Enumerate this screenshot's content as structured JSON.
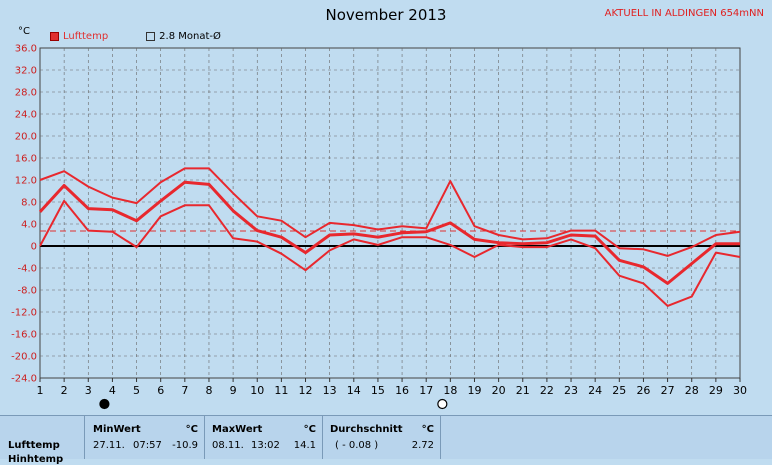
{
  "title": "November 2013",
  "station": "AKTUELL IN ALDINGEN 654mNN",
  "unit": "°C",
  "legend": [
    {
      "label": "Lufttemp",
      "color": "#e03030",
      "filled": true
    },
    {
      "label": "2.8 Monat-Ø",
      "color": "#333333",
      "filled": false
    }
  ],
  "chart_data": {
    "type": "line",
    "title": "November 2013",
    "ylabel": "°C",
    "ylim": [
      -24,
      36
    ],
    "yticks": [
      "36.0",
      "32.0",
      "28.0",
      "24.0",
      "20.0",
      "16.0",
      "12.0",
      "8.0",
      "4.0",
      "0",
      "-4.0",
      "-8.0",
      "-12.0",
      "-16.0",
      "-20.0",
      "-24.0"
    ],
    "x": [
      1,
      2,
      3,
      4,
      5,
      6,
      7,
      8,
      9,
      10,
      11,
      12,
      13,
      14,
      15,
      16,
      17,
      18,
      19,
      20,
      21,
      22,
      23,
      24,
      25,
      26,
      27,
      28,
      29,
      30
    ],
    "series": [
      {
        "name": "max",
        "values": [
          12.0,
          13.6,
          10.8,
          8.8,
          7.8,
          11.6,
          14.1,
          14.1,
          9.6,
          5.4,
          4.6,
          1.6,
          4.2,
          3.8,
          3.0,
          3.6,
          3.2,
          11.8,
          3.6,
          2.0,
          1.2,
          1.4,
          2.8,
          2.8,
          -0.4,
          -0.6,
          -1.8,
          -0.2,
          2.0,
          2.6
        ]
      },
      {
        "name": "mean",
        "values": [
          6.2,
          11.0,
          6.8,
          6.6,
          4.6,
          8.2,
          11.6,
          11.2,
          6.4,
          2.8,
          1.6,
          -1.2,
          2.0,
          2.2,
          1.6,
          2.4,
          2.6,
          4.2,
          1.2,
          0.6,
          0.4,
          0.6,
          2.0,
          1.8,
          -2.6,
          -3.8,
          -6.8,
          -3.2,
          0.4,
          0.4
        ]
      },
      {
        "name": "min",
        "values": [
          0.0,
          8.2,
          2.8,
          2.6,
          -0.2,
          5.4,
          7.4,
          7.4,
          1.4,
          0.8,
          -1.4,
          -4.4,
          -0.8,
          1.2,
          0.2,
          1.6,
          1.6,
          0.2,
          -2.0,
          0.2,
          -0.2,
          -0.2,
          1.2,
          -0.4,
          -5.4,
          -6.8,
          -10.9,
          -9.2,
          -1.2,
          -2.0
        ]
      }
    ],
    "reference_line": {
      "label": "2.8 Monat-Ø",
      "value": 2.72
    },
    "markers": [
      {
        "day": 4,
        "symbol": "new-moon"
      },
      {
        "day": 18,
        "symbol": "full-moon"
      }
    ],
    "grid": true
  },
  "stats": {
    "row_label": "Lufttemp",
    "row_label_2": "Hinhtemp",
    "min": {
      "header": "MinWert",
      "unit": "°C",
      "date": "27.11.",
      "time": "07:57",
      "value": "-10.9"
    },
    "max": {
      "header": "MaxWert",
      "unit": "°C",
      "date": "08.11.",
      "time": "13:02",
      "value": "14.1"
    },
    "avg": {
      "header": "Durchschnitt",
      "unit": "°C",
      "extra": "( - 0.08 )",
      "value": "2.72"
    }
  }
}
